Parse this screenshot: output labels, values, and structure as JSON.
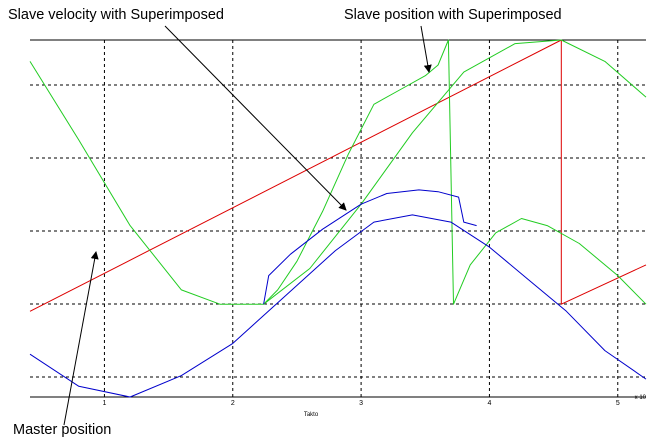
{
  "chart_data": {
    "type": "line",
    "xlabel": "Takto",
    "x_multiplier": "x 10",
    "x_ticks": [
      "1",
      "2",
      "3",
      "4",
      "5"
    ],
    "xlim": [
      0.42,
      5.22
    ],
    "grid": true,
    "annotations": [
      {
        "text": "Slave velocity with Superimposed",
        "points_to": "superimposed velocity curve"
      },
      {
        "text": "Slave position with Superimposed",
        "points_to": "superimposed position curve"
      },
      {
        "text": "Master position",
        "points_to": "master position line"
      }
    ],
    "colors": {
      "master": "#dd0000",
      "position": "#22cc22",
      "velocity": "#0000cc",
      "grid": "#000000"
    },
    "series": [
      {
        "key": "master_position",
        "color": "#dd0000",
        "points": [
          [
            0.42,
            0.24
          ],
          [
            4.56,
            1.0
          ],
          [
            4.56,
            0.26
          ],
          [
            5.22,
            0.37
          ]
        ]
      },
      {
        "key": "slave_position_superimposed",
        "color": "#22cc22",
        "points": [
          [
            2.24,
            0.26
          ],
          [
            2.35,
            0.3
          ],
          [
            2.5,
            0.38
          ],
          [
            2.7,
            0.52
          ],
          [
            2.9,
            0.68
          ],
          [
            3.1,
            0.82
          ],
          [
            3.3,
            0.86
          ],
          [
            3.5,
            0.9
          ],
          [
            3.6,
            0.93
          ],
          [
            3.68,
            1.0
          ],
          [
            3.72,
            0.26
          ],
          [
            3.85,
            0.37
          ],
          [
            4.05,
            0.46
          ],
          [
            4.25,
            0.5
          ],
          [
            4.45,
            0.48
          ],
          [
            4.7,
            0.43
          ],
          [
            5.0,
            0.34
          ],
          [
            5.22,
            0.26
          ]
        ]
      },
      {
        "key": "slave_position",
        "color": "#22cc22",
        "points": [
          [
            0.42,
            0.94
          ],
          [
            0.8,
            0.72
          ],
          [
            1.2,
            0.48
          ],
          [
            1.6,
            0.3
          ],
          [
            1.9,
            0.26
          ],
          [
            2.24,
            0.26
          ],
          [
            2.6,
            0.36
          ],
          [
            3.0,
            0.54
          ],
          [
            3.4,
            0.74
          ],
          [
            3.8,
            0.91
          ],
          [
            4.2,
            0.99
          ],
          [
            4.56,
            1.0
          ],
          [
            4.9,
            0.94
          ],
          [
            5.22,
            0.84
          ]
        ]
      },
      {
        "key": "slave_velocity",
        "color": "#0000cc",
        "points": [
          [
            0.42,
            0.12
          ],
          [
            0.8,
            0.03
          ],
          [
            1.2,
            0.0
          ],
          [
            1.6,
            0.06
          ],
          [
            2.0,
            0.15
          ],
          [
            2.4,
            0.28
          ],
          [
            2.8,
            0.41
          ],
          [
            3.1,
            0.49
          ],
          [
            3.4,
            0.51
          ],
          [
            3.7,
            0.49
          ],
          [
            4.0,
            0.42
          ],
          [
            4.3,
            0.33
          ],
          [
            4.6,
            0.24
          ],
          [
            4.9,
            0.13
          ],
          [
            5.22,
            0.05
          ]
        ]
      },
      {
        "key": "slave_velocity_superimposed",
        "color": "#0000cc",
        "points": [
          [
            2.24,
            0.26
          ],
          [
            2.28,
            0.34
          ],
          [
            2.45,
            0.4
          ],
          [
            2.7,
            0.47
          ],
          [
            3.0,
            0.54
          ],
          [
            3.2,
            0.57
          ],
          [
            3.45,
            0.58
          ],
          [
            3.6,
            0.575
          ],
          [
            3.76,
            0.56
          ],
          [
            3.8,
            0.49
          ],
          [
            3.9,
            0.48
          ]
        ]
      }
    ]
  }
}
